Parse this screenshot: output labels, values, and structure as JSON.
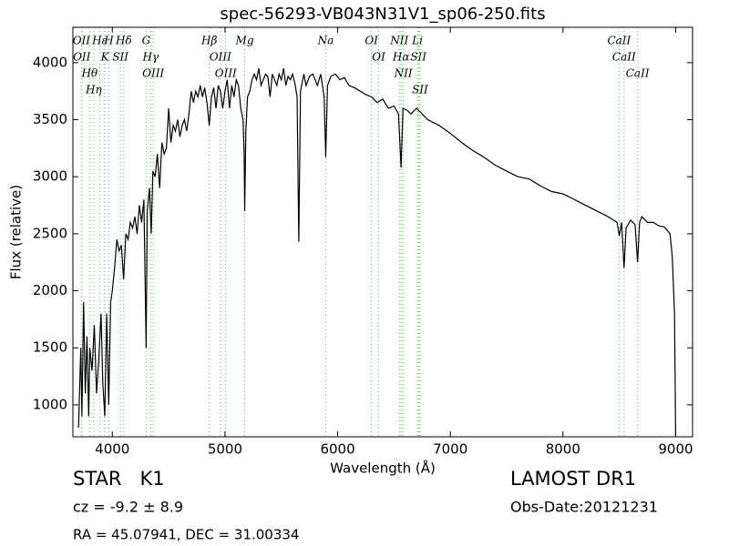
{
  "chart_data": {
    "type": "line",
    "title": "spec-56293-VB043N31V1_sp06-250.fits",
    "x_label": "Wavelength (Å)",
    "y_label": "Flux (relative)",
    "xlim": [
      3650,
      9150
    ],
    "ylim": [
      720,
      4310
    ],
    "xticks": [
      4000,
      5000,
      6000,
      7000,
      8000,
      9000
    ],
    "yticks": [
      1000,
      1500,
      2000,
      2500,
      3000,
      3500,
      4000
    ],
    "grid": false,
    "series": [
      {
        "name": "flux",
        "color": "#000000",
        "x": [
          3700,
          3720,
          3730,
          3745,
          3760,
          3775,
          3790,
          3800,
          3820,
          3840,
          3860,
          3880,
          3900,
          3915,
          3933,
          3950,
          3968,
          3985,
          4000,
          4020,
          4040,
          4060,
          4080,
          4100,
          4120,
          4140,
          4160,
          4180,
          4200,
          4220,
          4240,
          4260,
          4280,
          4300,
          4310,
          4330,
          4345,
          4360,
          4380,
          4400,
          4420,
          4440,
          4460,
          4480,
          4500,
          4520,
          4540,
          4560,
          4580,
          4600,
          4620,
          4640,
          4660,
          4680,
          4700,
          4720,
          4740,
          4760,
          4780,
          4800,
          4820,
          4840,
          4860,
          4880,
          4900,
          4920,
          4940,
          4960,
          4980,
          5000,
          5020,
          5040,
          5060,
          5080,
          5100,
          5120,
          5140,
          5160,
          5170,
          5175,
          5185,
          5200,
          5220,
          5240,
          5260,
          5280,
          5300,
          5320,
          5340,
          5360,
          5380,
          5400,
          5420,
          5440,
          5460,
          5480,
          5500,
          5520,
          5540,
          5560,
          5580,
          5600,
          5620,
          5640,
          5655,
          5670,
          5700,
          5720,
          5750,
          5780,
          5800,
          5820,
          5850,
          5880,
          5894,
          5910,
          5940,
          5980,
          6020,
          6060,
          6100,
          6150,
          6200,
          6250,
          6300,
          6350,
          6400,
          6450,
          6500,
          6540,
          6563,
          6580,
          6620,
          6650,
          6700,
          6750,
          6800,
          6900,
          7000,
          7100,
          7200,
          7300,
          7400,
          7500,
          7600,
          7700,
          7800,
          7900,
          8000,
          8100,
          8200,
          8300,
          8400,
          8480,
          8500,
          8520,
          8542,
          8560,
          8600,
          8640,
          8662,
          8680,
          8700,
          8750,
          8800,
          8850,
          8900,
          8950,
          8970,
          8990,
          9000
        ],
        "values": [
          800,
          1500,
          900,
          1900,
          1100,
          1600,
          900,
          1500,
          1300,
          1700,
          1100,
          1400,
          1800,
          1200,
          900,
          1800,
          1000,
          1900,
          2000,
          2200,
          2450,
          2350,
          2400,
          2100,
          2500,
          2450,
          2600,
          2550,
          2650,
          2500,
          2750,
          2600,
          2800,
          1500,
          2700,
          2900,
          2500,
          3050,
          3000,
          3200,
          2900,
          3300,
          3200,
          3250,
          3600,
          3300,
          3450,
          3400,
          3500,
          3350,
          3450,
          3500,
          3400,
          3550,
          3750,
          3650,
          3750,
          3700,
          3800,
          3700,
          3780,
          3650,
          3450,
          3700,
          3780,
          3600,
          3800,
          3750,
          3600,
          3750,
          3850,
          3600,
          3800,
          3700,
          3850,
          3800,
          3600,
          3500,
          3200,
          2700,
          3400,
          3700,
          3750,
          3850,
          3900,
          3850,
          3950,
          3800,
          3850,
          3900,
          3880,
          3700,
          3900,
          3850,
          3800,
          3900,
          3850,
          3950,
          3800,
          3880,
          3850,
          3900,
          3820,
          3700,
          2430,
          3750,
          3900,
          3800,
          3880,
          3900,
          3850,
          3800,
          3900,
          3700,
          3170,
          3800,
          3880,
          3900,
          3850,
          3870,
          3800,
          3780,
          3750,
          3720,
          3700,
          3650,
          3680,
          3600,
          3620,
          3550,
          3080,
          3600,
          3580,
          3550,
          3600,
          3550,
          3500,
          3450,
          3380,
          3300,
          3230,
          3170,
          3100,
          3050,
          3000,
          2980,
          2920,
          2870,
          2850,
          2800,
          2750,
          2700,
          2650,
          2600,
          2480,
          2600,
          2200,
          2550,
          2620,
          2580,
          2250,
          2600,
          2650,
          2600,
          2600,
          2570,
          2560,
          2500,
          2300,
          1800,
          720
        ]
      }
    ],
    "lines_color": "#55bb55",
    "lines": [
      {
        "label": "OII",
        "x": 3726
      },
      {
        "label": "OII",
        "x": 3729
      },
      {
        "label": "Hθ",
        "x": 3798
      },
      {
        "label": "Hη",
        "x": 3835
      },
      {
        "label": "Hε",
        "x": 3889
      },
      {
        "label": "K",
        "x": 3934
      },
      {
        "label": "H",
        "x": 3969
      },
      {
        "label": "SII",
        "x": 4072
      },
      {
        "label": "Hδ",
        "x": 4102
      },
      {
        "label": "G",
        "x": 4300
      },
      {
        "label": "Hγ",
        "x": 4340
      },
      {
        "label": "OIII",
        "x": 4363
      },
      {
        "label": "Hβ",
        "x": 4861
      },
      {
        "label": "OIII",
        "x": 4959
      },
      {
        "label": "OIII",
        "x": 5007
      },
      {
        "label": "Mg",
        "x": 5175
      },
      {
        "label": "Na",
        "x": 5894
      },
      {
        "label": "OI",
        "x": 6300
      },
      {
        "label": "OI",
        "x": 6364
      },
      {
        "label": "NII",
        "x": 6548
      },
      {
        "label": "Hα",
        "x": 6563
      },
      {
        "label": "NII",
        "x": 6583
      },
      {
        "label": "Li",
        "x": 6708
      },
      {
        "label": "SII",
        "x": 6717
      },
      {
        "label": "SII",
        "x": 6731
      },
      {
        "label": "CaII",
        "x": 8498
      },
      {
        "label": "CaII",
        "x": 8542
      },
      {
        "label": "CaII",
        "x": 8662
      }
    ],
    "annotations": {
      "object": "STAR   K1",
      "cz": "cz = -9.2 ± 8.9",
      "coords": "RA = 45.07941, DEC = 31.00334",
      "survey": "LAMOST DR1",
      "obs_date": "Obs-Date:20121231"
    }
  }
}
